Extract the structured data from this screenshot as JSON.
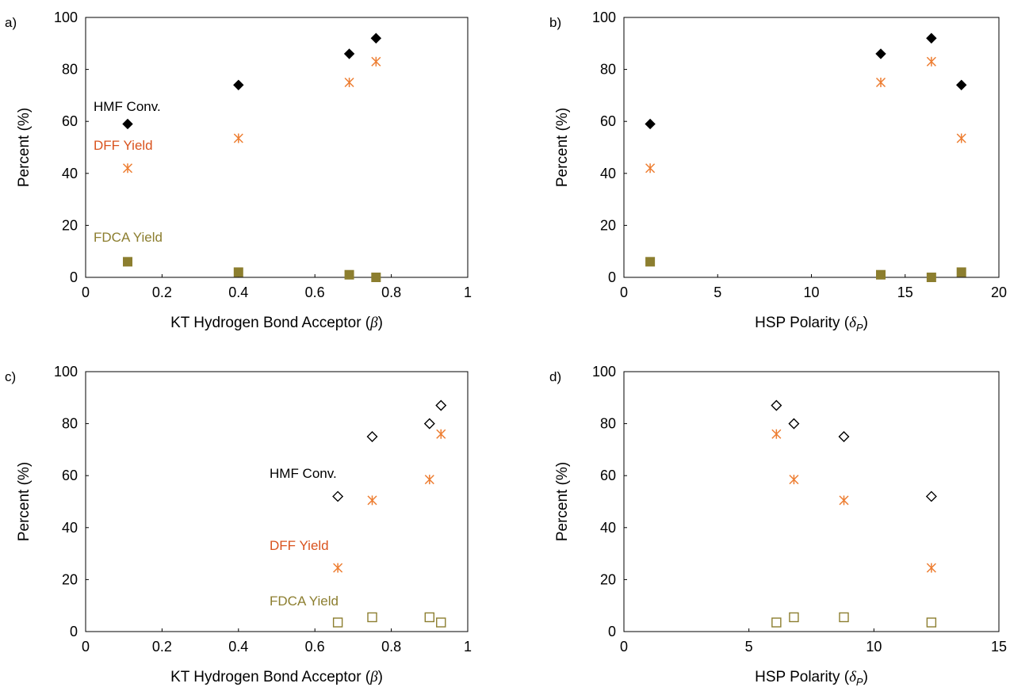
{
  "colors": {
    "hmf": "#000000",
    "dff": "#ED7D31",
    "dff_text": "#D9531E",
    "fdca": "#8C7E2F",
    "fdca_text": "#8C7E2F"
  },
  "chart_data": [
    {
      "id": "a",
      "panel_label": "a)",
      "type": "scatter",
      "xlabel": "KT Hydrogen Bond Acceptor (",
      "xsymbol": "β",
      "xsub": "",
      "xlabel_close": ")",
      "ylabel": "Percent (%)",
      "xlim": [
        0,
        1
      ],
      "ylim": [
        0,
        100
      ],
      "xticks": [
        "0",
        "0.2",
        "0.4",
        "0.6",
        "0.8",
        "1"
      ],
      "yticks": [
        "0",
        "20",
        "40",
        "60",
        "80",
        "100"
      ],
      "annotations": [
        "HMF Conv.",
        "DFF Yield",
        "FDCA Yield"
      ],
      "series": [
        {
          "name": "HMF Conv.",
          "marker": "diamond-filled",
          "x": [
            0.11,
            0.4,
            0.69,
            0.76
          ],
          "y": [
            59,
            74,
            86,
            92
          ]
        },
        {
          "name": "DFF Yield",
          "marker": "asterisk",
          "x": [
            0.11,
            0.4,
            0.69,
            0.76
          ],
          "y": [
            42,
            53.5,
            75,
            83
          ]
        },
        {
          "name": "FDCA Yield",
          "marker": "square-filled",
          "x": [
            0.11,
            0.4,
            0.69,
            0.76
          ],
          "y": [
            6,
            2,
            1,
            0
          ]
        }
      ]
    },
    {
      "id": "b",
      "panel_label": "b)",
      "type": "scatter",
      "xlabel": "HSP Polarity (",
      "xsymbol": "δ",
      "xsub": "P",
      "xlabel_close": ")",
      "ylabel": "Percent (%)",
      "xlim": [
        0,
        20
      ],
      "ylim": [
        0,
        100
      ],
      "xticks": [
        "0",
        "5",
        "10",
        "15",
        "20"
      ],
      "yticks": [
        "0",
        "20",
        "40",
        "60",
        "80",
        "100"
      ],
      "annotations": [],
      "series": [
        {
          "name": "HMF Conv.",
          "marker": "diamond-filled",
          "x": [
            1.4,
            13.7,
            16.4,
            18.0
          ],
          "y": [
            59,
            86,
            92,
            74
          ]
        },
        {
          "name": "DFF Yield",
          "marker": "asterisk",
          "x": [
            1.4,
            13.7,
            16.4,
            18.0
          ],
          "y": [
            42,
            75,
            83,
            53.5
          ]
        },
        {
          "name": "FDCA Yield",
          "marker": "square-filled",
          "x": [
            1.4,
            13.7,
            16.4,
            18.0
          ],
          "y": [
            6,
            1,
            0,
            2
          ]
        }
      ]
    },
    {
      "id": "c",
      "panel_label": "c)",
      "type": "scatter",
      "xlabel": "KT Hydrogen Bond Acceptor (",
      "xsymbol": "β",
      "xsub": "",
      "xlabel_close": ")",
      "ylabel": "Percent (%)",
      "xlim": [
        0,
        1
      ],
      "ylim": [
        0,
        100
      ],
      "xticks": [
        "0",
        "0.2",
        "0.4",
        "0.6",
        "0.8",
        "1"
      ],
      "yticks": [
        "0",
        "20",
        "40",
        "60",
        "80",
        "100"
      ],
      "annotations": [
        "HMF Conv.",
        "DFF Yield",
        "FDCA Yield"
      ],
      "series": [
        {
          "name": "HMF Conv.",
          "marker": "diamond-open",
          "x": [
            0.66,
            0.75,
            0.9,
            0.93
          ],
          "y": [
            52,
            75,
            80,
            87
          ]
        },
        {
          "name": "DFF Yield",
          "marker": "asterisk",
          "x": [
            0.66,
            0.75,
            0.9,
            0.93
          ],
          "y": [
            24.5,
            50.5,
            58.5,
            76
          ]
        },
        {
          "name": "FDCA Yield",
          "marker": "square-open",
          "x": [
            0.66,
            0.75,
            0.9,
            0.93
          ],
          "y": [
            3.5,
            5.5,
            5.5,
            3.5
          ]
        }
      ]
    },
    {
      "id": "d",
      "panel_label": "d)",
      "type": "scatter",
      "xlabel": "HSP Polarity (",
      "xsymbol": "δ",
      "xsub": "P",
      "xlabel_close": ")",
      "ylabel": "Percent (%)",
      "xlim": [
        0,
        15
      ],
      "ylim": [
        0,
        100
      ],
      "xticks": [
        "0",
        "5",
        "10",
        "15"
      ],
      "yticks": [
        "0",
        "20",
        "40",
        "60",
        "80",
        "100"
      ],
      "annotations": [],
      "series": [
        {
          "name": "HMF Conv.",
          "marker": "diamond-open",
          "x": [
            6.1,
            6.8,
            8.8,
            12.3
          ],
          "y": [
            87,
            80,
            75,
            52
          ]
        },
        {
          "name": "DFF Yield",
          "marker": "asterisk",
          "x": [
            6.1,
            6.8,
            8.8,
            12.3
          ],
          "y": [
            76,
            58.5,
            50.5,
            24.5
          ]
        },
        {
          "name": "FDCA Yield",
          "marker": "square-open",
          "x": [
            6.1,
            6.8,
            8.8,
            12.3
          ],
          "y": [
            3.5,
            5.5,
            5.5,
            3.5
          ]
        }
      ]
    }
  ]
}
